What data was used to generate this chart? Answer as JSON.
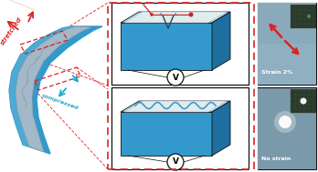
{
  "bg_color": "#ffffff",
  "stretched_label": "stretched",
  "compressed_label": "compressed",
  "strain_label": "Strain 2%",
  "no_strain_label": "No strain",
  "voltmeter_label": "V",
  "blue_main": "#3399CC",
  "blue_top": "#AADDEE",
  "blue_side": "#1E6FA0",
  "blue_light": "#66BBDD",
  "metal_layer": "#D8E8EE",
  "red_color": "#DD2222",
  "cyan_color": "#22AACC",
  "dashed_red": "#DD2222",
  "wire_red": "#CC2222",
  "wave_blue": "#4499CC",
  "black": "#111111",
  "white": "#FFFFFF",
  "gray_metal": "#B0BCC8",
  "crack_color": "#334455"
}
